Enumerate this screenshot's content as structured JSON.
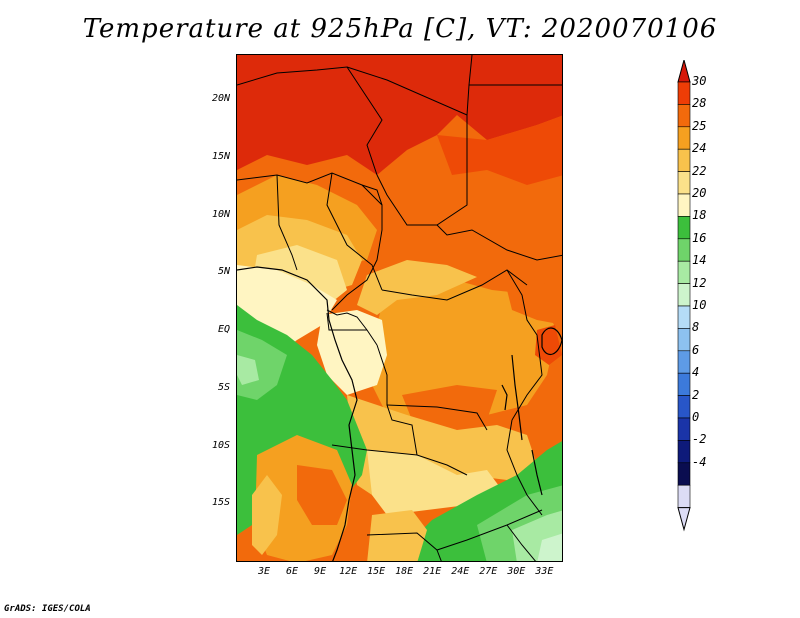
{
  "title": "Temperature at 925hPa [C], VT: 2020070106",
  "footer": "GrADS: IGES/COLA",
  "map": {
    "lon_range": [
      0,
      35
    ],
    "lat_range": [
      -20,
      24
    ],
    "lat_ticks": [
      {
        "value": 20,
        "label": "20N"
      },
      {
        "value": 15,
        "label": "15N"
      },
      {
        "value": 10,
        "label": "10N"
      },
      {
        "value": 5,
        "label": "5N"
      },
      {
        "value": 0,
        "label": "EQ"
      },
      {
        "value": -5,
        "label": "5S"
      },
      {
        "value": -10,
        "label": "10S"
      },
      {
        "value": -15,
        "label": "15S"
      }
    ],
    "lon_ticks": [
      {
        "value": 3,
        "label": "3E"
      },
      {
        "value": 6,
        "label": "6E"
      },
      {
        "value": 9,
        "label": "9E"
      },
      {
        "value": 12,
        "label": "12E"
      },
      {
        "value": 15,
        "label": "15E"
      },
      {
        "value": 18,
        "label": "18E"
      },
      {
        "value": 21,
        "label": "21E"
      },
      {
        "value": 24,
        "label": "24E"
      },
      {
        "value": 27,
        "label": "27E"
      },
      {
        "value": 30,
        "label": "30E"
      },
      {
        "value": 33,
        "label": "33E"
      }
    ]
  },
  "colorbar": {
    "labels": [
      "30",
      "28",
      "25",
      "24",
      "22",
      "20",
      "18",
      "16",
      "14",
      "12",
      "10",
      "8",
      "6",
      "4",
      "2",
      "0",
      "-2",
      "-4"
    ],
    "colors_top_to_bottom": [
      "#dd2a0a",
      "#ee3d06",
      "#f26a0c",
      "#f5a020",
      "#f8c24c",
      "#fbe18a",
      "#fff5c2",
      "#3cbf3c",
      "#6fd46a",
      "#a8eaa3",
      "#cdf4cc",
      "#b5dcf7",
      "#8dc1f0",
      "#5e9be6",
      "#3c7adb",
      "#2856c8",
      "#1a34a8",
      "#0e1a7a",
      "#0a0d50",
      "#dcdcf5"
    ],
    "top_arrow_color": "#d6180a",
    "bottom_arrow_color": "#dcdcf5"
  },
  "field_colors": {
    "t29": "#dd2a0a",
    "t27": "#ee4a06",
    "t25": "#f26a0c",
    "t24": "#f5a020",
    "t22": "#f8c24c",
    "t20": "#fbe18a",
    "t18": "#fff5c2",
    "t16": "#3cbf3c",
    "t14": "#6fd46a",
    "t12": "#a8eaa3",
    "t10": "#cdf4cc"
  }
}
